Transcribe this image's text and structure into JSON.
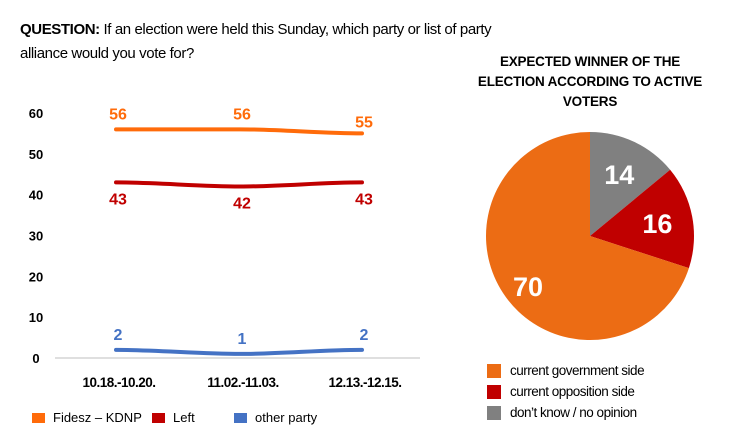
{
  "question": {
    "label": "QUESTION:",
    "text": "If an election were held this Sunday, which party or list of party alliance would you vote for?"
  },
  "colors": {
    "orange": "#FF6B0A",
    "red": "#C00000",
    "blue": "#4472C4",
    "pie_orange": "#EC6C14",
    "pie_red": "#C00000",
    "pie_grey": "#808080"
  },
  "chart_data": [
    {
      "type": "line",
      "categories": [
        "10.18.-10.20.",
        "11.02.-11.03.",
        "12.13.-12.15."
      ],
      "ylim": [
        0,
        60
      ],
      "yticks": [
        0,
        10,
        20,
        30,
        40,
        50,
        60
      ],
      "grid": false,
      "legend_placement": "bottom",
      "series": [
        {
          "name": "Fidesz – KDNP",
          "values": [
            56,
            56,
            55
          ],
          "color": "#FF6B0A",
          "label_pos": "above"
        },
        {
          "name": "Left",
          "values": [
            43,
            42,
            43
          ],
          "color": "#C00000",
          "label_pos": "below"
        },
        {
          "name": "other party",
          "values": [
            2,
            1,
            2
          ],
          "color": "#4472C4",
          "label_pos": "above"
        }
      ]
    },
    {
      "type": "pie",
      "title": "EXPECTED WINNER OF THE ELECTION ACCORDING TO ACTIVE VOTERS",
      "slices": [
        {
          "label": "don’t know / no opinion",
          "value": 14,
          "color": "#808080"
        },
        {
          "label": "current opposition side",
          "value": 16,
          "color": "#C00000"
        },
        {
          "label": "current government side",
          "value": 70,
          "color": "#EC6C14"
        }
      ],
      "legend_order": [
        2,
        1,
        0
      ],
      "legend_placement": "bottom"
    }
  ]
}
